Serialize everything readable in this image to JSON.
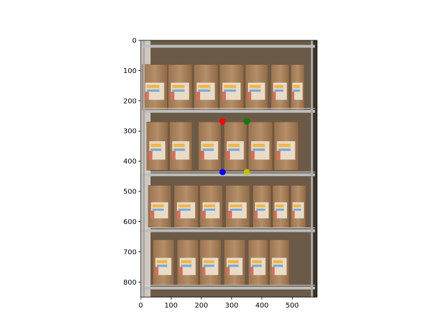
{
  "chart_data": {
    "type": "scatter",
    "background": "photo of metal wire shelving unit with kraft paper coffee bags on four shelves",
    "xlim": [
      0,
      582
    ],
    "ylim": [
      850,
      0
    ],
    "x_ticks": [
      0,
      100,
      200,
      300,
      400,
      500
    ],
    "y_ticks": [
      0,
      100,
      200,
      300,
      400,
      500,
      600,
      700,
      800
    ],
    "x_tick_labels": [
      "0",
      "100",
      "200",
      "300",
      "400",
      "500"
    ],
    "y_tick_labels": [
      "0",
      "100",
      "200",
      "300",
      "400",
      "500",
      "600",
      "700",
      "800"
    ],
    "points": [
      {
        "x": 270,
        "y": 268,
        "color": "#ff0000"
      },
      {
        "x": 350,
        "y": 268,
        "color": "#008000"
      },
      {
        "x": 270,
        "y": 436,
        "color": "#0000ff"
      },
      {
        "x": 350,
        "y": 436,
        "color": "#bfbf00"
      }
    ],
    "grid": false
  }
}
